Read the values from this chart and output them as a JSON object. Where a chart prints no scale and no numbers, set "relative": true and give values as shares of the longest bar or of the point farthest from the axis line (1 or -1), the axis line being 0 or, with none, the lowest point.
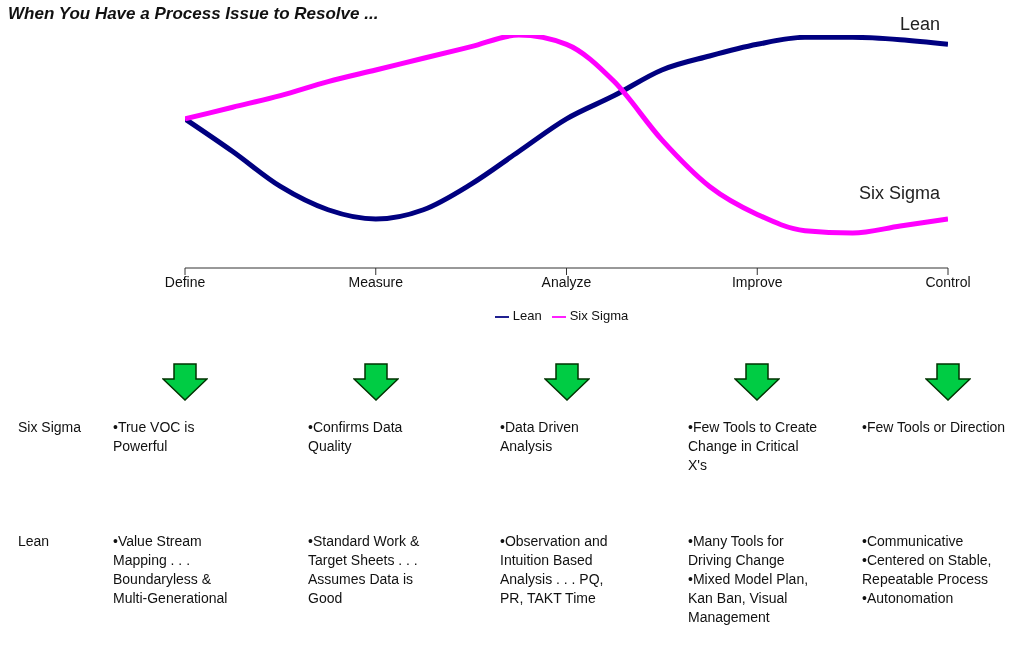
{
  "chart_data": {
    "type": "line",
    "title": "When You Have a Process Issue to Resolve ...",
    "relative": true,
    "categories": [
      "Define",
      null,
      null,
      null,
      "Measure",
      null,
      null,
      null,
      "Analyze",
      null,
      null,
      null,
      "Improve",
      null,
      null,
      null,
      "Control"
    ],
    "series": [
      {
        "name": "Lean",
        "color": "#000080",
        "values": [
          0.64,
          0.5,
          0.35,
          0.25,
          0.21,
          0.25,
          0.36,
          0.5,
          0.64,
          0.74,
          0.85,
          0.91,
          0.96,
          0.99,
          0.99,
          0.98,
          0.96
        ]
      },
      {
        "name": "Six Sigma",
        "color": "#ff00ff",
        "values": [
          0.64,
          0.69,
          0.74,
          0.8,
          0.85,
          0.9,
          0.95,
          1,
          0.96,
          0.8,
          0.55,
          0.35,
          0.23,
          0.16,
          0.15,
          0.18,
          0.21
        ]
      }
    ],
    "legend": "bottom",
    "grid": false,
    "marker": "none",
    "line_style": "solid",
    "annotations": [
      "Six Sigma",
      "•True VOC is Powerful",
      "•Confirms Data Quality",
      "•Data Driven Analysis",
      "•Few Tools to Create Change in Critical X's",
      "•Few Tools or Direction",
      "Lean",
      "•Value Stream Mapping . . . Boundaryless & Multi-Generational",
      "•Standard Work & Target Sheets . . . Assumes Data is Good",
      "•Observation and Intuition Based Analysis . . . PQ, PR, TAKT Time",
      "•Many Tools for Driving Change\n•Mixed Model Plan, Kan Ban, Visual Management",
      "•Communicative\n•Centered on Stable, Repeatable Process\n•Autonomation"
    ]
  }
}
